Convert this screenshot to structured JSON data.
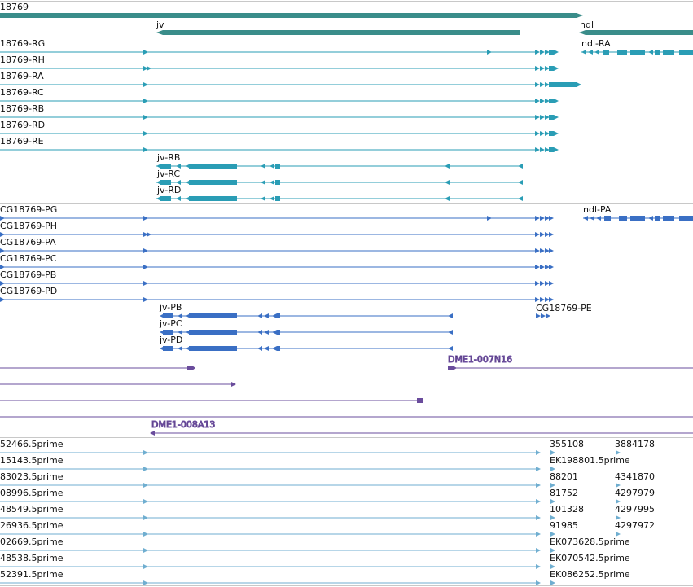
{
  "colors": {
    "gene": "#3a8d8a",
    "transcript": "#2a9db5",
    "protein": "#3a6fc4",
    "clone": "#6a4c9c",
    "est": "#6faed0",
    "divider": "#c8c8c8"
  },
  "genes": {
    "cg18769_label": "18769",
    "jv_label": "jv",
    "ndl_label": "ndl"
  },
  "transcripts": [
    "18769-RG",
    "18769-RH",
    "18769-RA",
    "18769-RC",
    "18769-RB",
    "18769-RD",
    "18769-RE"
  ],
  "jv_transcripts": [
    "jv-RB",
    "jv-RC",
    "jv-RD"
  ],
  "ndl_transcript": "ndl-RA",
  "proteins": [
    "CG18769-PG",
    "CG18769-PH",
    "CG18769-PA",
    "CG18769-PC",
    "CG18769-PB",
    "CG18769-PD"
  ],
  "jv_proteins": [
    "jv-PB",
    "jv-PC",
    "jv-PD"
  ],
  "ndl_protein": "ndl-PA",
  "pe_protein": "CG18769-PE",
  "clones": {
    "clone_a": "DME1-007N16",
    "clone_b": "DME1-008A13"
  },
  "ests_left": [
    "52466.5prime",
    "15143.5prime",
    "83023.5prime",
    "08996.5prime",
    "48549.5prime",
    "26936.5prime",
    "02669.5prime",
    "48538.5prime",
    "52391.5prime"
  ],
  "ests_right_a": [
    "355108",
    "EK198801.5prime",
    "88201",
    "81752",
    "101328",
    "91985",
    "EK073628.5prime",
    "EK070542.5prime",
    "EK086252.5prime"
  ],
  "ests_right_b": [
    "3884178",
    "",
    "4341870",
    "4297979",
    "4297995",
    "4297972",
    "",
    "",
    ""
  ]
}
